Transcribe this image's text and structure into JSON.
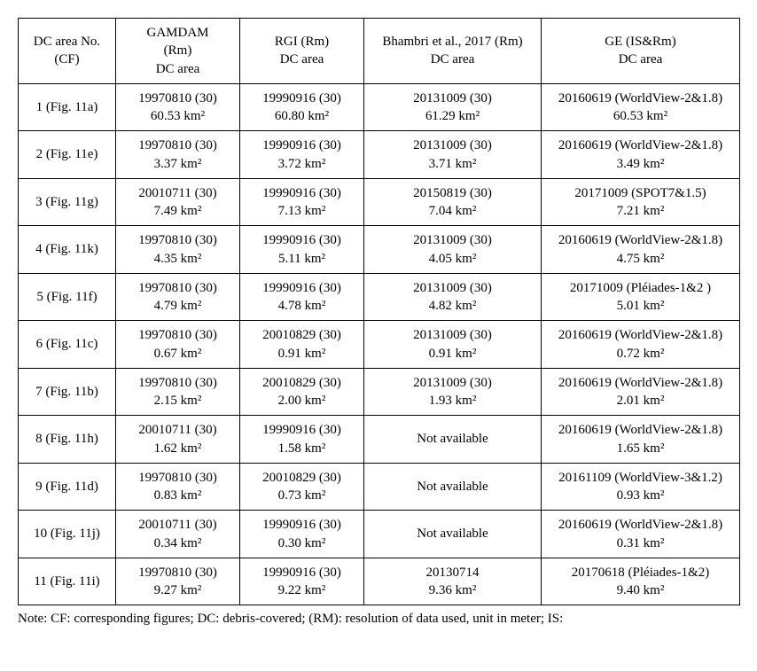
{
  "table": {
    "headers": [
      [
        "DC area No.",
        "(CF)"
      ],
      [
        "GAMDAM",
        "(Rm)",
        "DC area"
      ],
      [
        "RGI (Rm)",
        "DC area"
      ],
      [
        "Bhambri et al., 2017 (Rm)",
        "DC area"
      ],
      [
        "GE (IS&Rm)",
        "DC area"
      ]
    ],
    "rows": [
      {
        "label": "1 (Fig. 11a)",
        "c1": [
          "19970810 (30)",
          "60.53 km²"
        ],
        "c2": [
          "19990916 (30)",
          "60.80 km²"
        ],
        "c3": [
          "20131009 (30)",
          "61.29 km²"
        ],
        "c4": [
          "20160619 (WorldView-2&1.8)",
          "60.53 km²"
        ]
      },
      {
        "label": "2 (Fig. 11e)",
        "c1": [
          "19970810 (30)",
          "3.37 km²"
        ],
        "c2": [
          "19990916 (30)",
          "3.72 km²"
        ],
        "c3": [
          "20131009 (30)",
          "3.71 km²"
        ],
        "c4": [
          "20160619 (WorldView-2&1.8)",
          "3.49 km²"
        ]
      },
      {
        "label": "3 (Fig. 11g)",
        "c1": [
          "20010711 (30)",
          "7.49 km²"
        ],
        "c2": [
          "19990916 (30)",
          "7.13 km²"
        ],
        "c3": [
          "20150819 (30)",
          "7.04 km²"
        ],
        "c4": [
          "20171009 (SPOT7&1.5)",
          "7.21 km²"
        ]
      },
      {
        "label": "4 (Fig. 11k)",
        "c1": [
          "19970810 (30)",
          "4.35 km²"
        ],
        "c2": [
          "19990916 (30)",
          "5.11 km²"
        ],
        "c3": [
          "20131009 (30)",
          "4.05 km²"
        ],
        "c4": [
          "20160619 (WorldView-2&1.8)",
          "4.75 km²"
        ]
      },
      {
        "label": "5 (Fig. 11f)",
        "c1": [
          "19970810 (30)",
          "4.79 km²"
        ],
        "c2": [
          "19990916 (30)",
          "4.78 km²"
        ],
        "c3": [
          "20131009 (30)",
          "4.82 km²"
        ],
        "c4": [
          "20171009 (Pléiades-1&2 )",
          "5.01 km²"
        ]
      },
      {
        "label": "6 (Fig. 11c)",
        "c1": [
          "19970810 (30)",
          "0.67 km²"
        ],
        "c2": [
          "20010829 (30)",
          "0.91 km²"
        ],
        "c3": [
          "20131009 (30)",
          "0.91 km²"
        ],
        "c4": [
          "20160619 (WorldView-2&1.8)",
          "0.72 km²"
        ]
      },
      {
        "label": "7 (Fig. 11b)",
        "c1": [
          "19970810 (30)",
          "2.15 km²"
        ],
        "c2": [
          "20010829 (30)",
          "2.00 km²"
        ],
        "c3": [
          "20131009 (30)",
          "1.93  km²"
        ],
        "c4": [
          "20160619 (WorldView-2&1.8)",
          "2.01 km²"
        ]
      },
      {
        "label": "8 (Fig. 11h)",
        "c1": [
          "20010711 (30)",
          "1.62 km²"
        ],
        "c2": [
          "19990916 (30)",
          "1.58 km²"
        ],
        "c3": [
          "Not available"
        ],
        "c4": [
          "20160619 (WorldView-2&1.8)",
          "1.65 km²"
        ]
      },
      {
        "label": "9 (Fig. 11d)",
        "c1": [
          "19970810 (30)",
          "0.83 km²"
        ],
        "c2": [
          "20010829 (30)",
          "0.73 km²"
        ],
        "c3": [
          "Not available"
        ],
        "c4": [
          "20161109 (WorldView-3&1.2)",
          "0.93 km²"
        ]
      },
      {
        "label": "10 (Fig. 11j)",
        "c1": [
          "20010711 (30)",
          "0.34 km²"
        ],
        "c2": [
          "19990916 (30)",
          "0.30 km²"
        ],
        "c3": [
          "Not available"
        ],
        "c4": [
          "20160619 (WorldView-2&1.8)",
          "0.31 km²"
        ]
      },
      {
        "label": "11 (Fig. 11i)",
        "c1": [
          "19970810 (30)",
          "9.27 km²"
        ],
        "c2": [
          "19990916 (30)",
          "9.22 km²"
        ],
        "c3": [
          "20130714",
          "9.36 km²"
        ],
        "c4": [
          "20170618 (Pléiades-1&2)",
          "9.40 km²"
        ]
      }
    ]
  },
  "note": "Note: CF: corresponding figures; DC: debris-covered; (RM): resolution of data used, unit in meter; IS:"
}
